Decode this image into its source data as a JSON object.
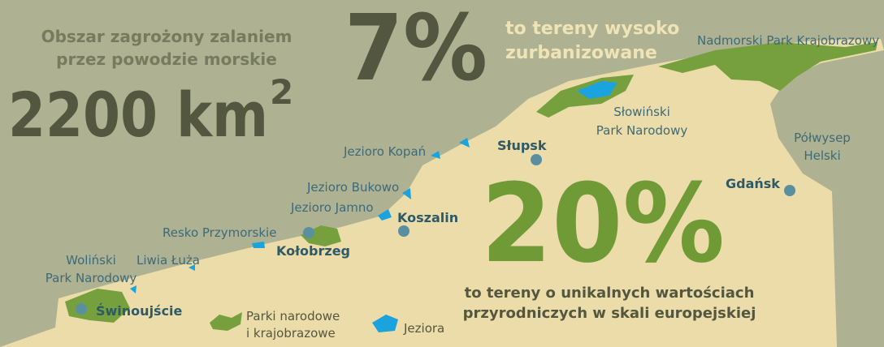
{
  "headline": {
    "label": [
      "Obszar zagrożony zalaniem",
      "przez powodzie morskie"
    ],
    "value": "2200 km",
    "sup": "2"
  },
  "urban": {
    "value": "7%",
    "label": [
      "to tereny wysoko",
      "zurbanizowane"
    ]
  },
  "nature": {
    "value": "20%",
    "label": [
      "to tereny o unikalnych wartościach",
      "przyrodniczych w skali europejskiej"
    ]
  },
  "cities": [
    "Słupsk",
    "Gdańsk",
    "Koszalin",
    "Kołobrzeg",
    "Świnoujście"
  ],
  "places": {
    "kopan": "Jezioro Kopań",
    "bukowo": "Jezioro Bukowo",
    "jamno": "Jezioro Jamno",
    "resko": "Resko Przymorskie",
    "liwia": "Liwia Łuża",
    "wolinski": [
      "Woliński",
      "Park Narodowy"
    ],
    "slowinski": [
      "Słowiński",
      "Park Narodowy"
    ],
    "nadmorski": "Nadmorski Park Krajobrazowy",
    "hel": [
      "Półwysep",
      "Helski"
    ]
  },
  "legend": {
    "parks": [
      "Parki narodowe",
      "i krajobrazowe"
    ],
    "lakes": "Jeziora"
  }
}
